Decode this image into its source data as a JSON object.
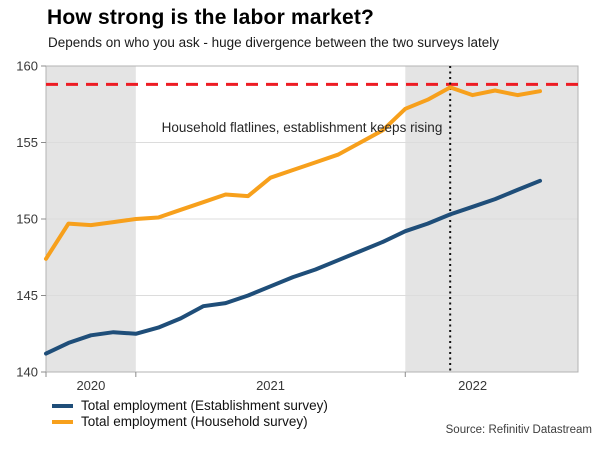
{
  "page": {
    "title": "How strong is the labor market?",
    "subtitle": "Depends on who you ask - huge divergence between the two surveys lately",
    "source": "Source: Refinitiv Datastream"
  },
  "legend": [
    {
      "label": "Total employment (Establishment survey)",
      "color": "#1f4e79"
    },
    {
      "label": "Total employment (Household survey)",
      "color": "#f7a01c"
    }
  ],
  "chart_data": {
    "type": "line",
    "title": "How strong is the labor market?",
    "subtitle": "Depends on who you ask - huge divergence between the two surveys lately",
    "x_unit": "month",
    "x_months": [
      "2020-09",
      "2020-10",
      "2020-11",
      "2020-12",
      "2021-01",
      "2021-02",
      "2021-03",
      "2021-04",
      "2021-05",
      "2021-06",
      "2021-07",
      "2021-08",
      "2021-09",
      "2021-10",
      "2021-11",
      "2021-12",
      "2022-01",
      "2022-02",
      "2022-03",
      "2022-04",
      "2022-05",
      "2022-06",
      "2022-07"
    ],
    "x_tick_labels": [
      "2020",
      "2021",
      "2022"
    ],
    "ylim": [
      140,
      160
    ],
    "y_ticks": [
      140,
      145,
      150,
      155,
      160
    ],
    "grid": true,
    "series": [
      {
        "name": "Total employment (Establishment survey)",
        "color": "#1f4e79",
        "values": [
          141.2,
          141.9,
          142.4,
          142.6,
          142.5,
          142.9,
          143.5,
          144.3,
          144.5,
          145.0,
          145.6,
          146.2,
          146.7,
          147.3,
          147.9,
          148.5,
          149.2,
          149.7,
          150.3,
          150.8,
          151.3,
          151.9,
          152.5
        ]
      },
      {
        "name": "Total employment (Household survey)",
        "color": "#f7a01c",
        "values": [
          147.4,
          149.7,
          149.6,
          149.8,
          150.0,
          150.1,
          150.6,
          151.1,
          151.6,
          151.5,
          152.7,
          153.2,
          153.7,
          154.2,
          155.0,
          155.8,
          157.2,
          157.8,
          158.6,
          158.1,
          158.4,
          158.1,
          158.35
        ]
      },
      {
        "name": "peak-level-reference",
        "style": "dashed",
        "color": "#ed1c24",
        "value": 158.8
      }
    ],
    "reference_line": {
      "value": 158.8,
      "style": "dashed",
      "color": "#ed1c24"
    },
    "event_line": {
      "x_index": 18,
      "x_month": "2022-03",
      "style": "dotted",
      "color": "#111111"
    },
    "annotation": {
      "text": "Household flatlines, establishment keeps rising"
    },
    "shaded_years": [
      "2020",
      "2022"
    ],
    "colors": {
      "band": "#e4e4e4",
      "grid": "#dcdcdc",
      "border": "#b3b3b3",
      "tick": "#8c8c8c",
      "axis_text": "#383838",
      "annotation_text": "#262626"
    },
    "legend_position": "bottom-left"
  }
}
